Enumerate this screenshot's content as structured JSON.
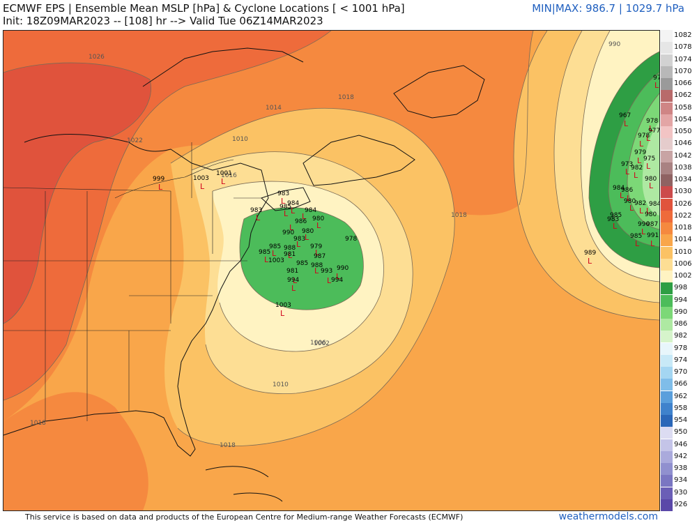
{
  "header": {
    "title": "ECMWF EPS | Ensemble Mean MSLP [hPa] & Cyclone Locations [ < 1001 hPa]",
    "subtitle": "Init: 18Z09MAR2023 -- [108] hr --> Valid Tue 06Z14MAR2023",
    "minmax": "MIN|MAX: 986.7 | 1029.7 hPa"
  },
  "footer": {
    "credit": "This service is based on data and products of the European Centre for Medium-range Weather Forecasts (ECMWF)",
    "brand": "weathermodels.com"
  },
  "legend": [
    {
      "label": "1082",
      "color": "#f4f4f4"
    },
    {
      "label": "1078",
      "color": "#e6e6e6"
    },
    {
      "label": "1074",
      "color": "#d2d2d2"
    },
    {
      "label": "1070",
      "color": "#b8b8b8"
    },
    {
      "label": "1066",
      "color": "#9a9a9a"
    },
    {
      "label": "1062",
      "color": "#b86a6a"
    },
    {
      "label": "1058",
      "color": "#cf8585"
    },
    {
      "label": "1054",
      "color": "#e3a5a5"
    },
    {
      "label": "1050",
      "color": "#f2c4c4"
    },
    {
      "label": "1046",
      "color": "#e5cccc"
    },
    {
      "label": "1042",
      "color": "#c8a4a4"
    },
    {
      "label": "1038",
      "color": "#a98282"
    },
    {
      "label": "1034",
      "color": "#8f6262"
    },
    {
      "label": "1030",
      "color": "#cc4b4b"
    },
    {
      "label": "1026",
      "color": "#e0533c"
    },
    {
      "label": "1022",
      "color": "#ee6b3b"
    },
    {
      "label": "1018",
      "color": "#f5893f"
    },
    {
      "label": "1014",
      "color": "#f9a64a"
    },
    {
      "label": "1010",
      "color": "#fbc264"
    },
    {
      "label": "1006",
      "color": "#fdde94"
    },
    {
      "label": "1002",
      "color": "#fff3c2"
    },
    {
      "label": "998",
      "color": "#2e9e44"
    },
    {
      "label": "994",
      "color": "#4cbc5a"
    },
    {
      "label": "990",
      "color": "#7cd877"
    },
    {
      "label": "986",
      "color": "#aee9a2"
    },
    {
      "label": "982",
      "color": "#d6f4cb"
    },
    {
      "label": "978",
      "color": "#e8f6fb"
    },
    {
      "label": "974",
      "color": "#c8e9f7"
    },
    {
      "label": "970",
      "color": "#a4d6f2"
    },
    {
      "label": "966",
      "color": "#7fbde9"
    },
    {
      "label": "962",
      "color": "#5a9fdc"
    },
    {
      "label": "958",
      "color": "#3f82cc"
    },
    {
      "label": "954",
      "color": "#2b67b8"
    },
    {
      "label": "950",
      "color": "#dcdcf2"
    },
    {
      "label": "946",
      "color": "#c4c4e8"
    },
    {
      "label": "942",
      "color": "#aaaadc"
    },
    {
      "label": "938",
      "color": "#9090cf"
    },
    {
      "label": "934",
      "color": "#7a76c2"
    },
    {
      "label": "930",
      "color": "#6a5eb6"
    },
    {
      "label": "926",
      "color": "#5a48a8"
    }
  ],
  "map": {
    "isobar_labels": [
      "1026",
      "1022",
      "1018",
      "1014",
      "1010",
      "1006",
      "1002",
      "1018",
      "1014",
      "1010",
      "1006",
      "1018",
      "1014",
      "1018",
      "1002",
      "1006",
      "1010",
      "1018",
      "990",
      "1016"
    ],
    "lows": [
      {
        "label": "999"
      },
      {
        "label": "1003"
      },
      {
        "label": "1001"
      },
      {
        "label": "983"
      },
      {
        "label": "983"
      },
      {
        "label": "985"
      },
      {
        "label": "984"
      },
      {
        "label": "984"
      },
      {
        "label": "980"
      },
      {
        "label": "986"
      },
      {
        "label": "983"
      },
      {
        "label": "980"
      },
      {
        "label": "979"
      },
      {
        "label": "978"
      },
      {
        "label": "985"
      },
      {
        "label": "985"
      },
      {
        "label": "988"
      },
      {
        "label": "981"
      },
      {
        "label": "993"
      },
      {
        "label": "990"
      },
      {
        "label": "985"
      },
      {
        "label": "988"
      },
      {
        "label": "994"
      },
      {
        "label": "987"
      },
      {
        "label": "994"
      },
      {
        "label": "1003"
      },
      {
        "label": "1003"
      },
      {
        "label": "981"
      },
      {
        "label": "990"
      },
      {
        "label": "978"
      },
      {
        "label": "967"
      },
      {
        "label": "978"
      },
      {
        "label": "977"
      },
      {
        "label": "979"
      },
      {
        "label": "978"
      },
      {
        "label": "975"
      },
      {
        "label": "973"
      },
      {
        "label": "982"
      },
      {
        "label": "980"
      },
      {
        "label": "984"
      },
      {
        "label": "986"
      },
      {
        "label": "982"
      },
      {
        "label": "980"
      },
      {
        "label": "984"
      },
      {
        "label": "983"
      },
      {
        "label": "985"
      },
      {
        "label": "990"
      },
      {
        "label": "987"
      },
      {
        "label": "985"
      },
      {
        "label": "991"
      },
      {
        "label": "989"
      },
      {
        "label": "980"
      }
    ],
    "low_marker": "L"
  }
}
